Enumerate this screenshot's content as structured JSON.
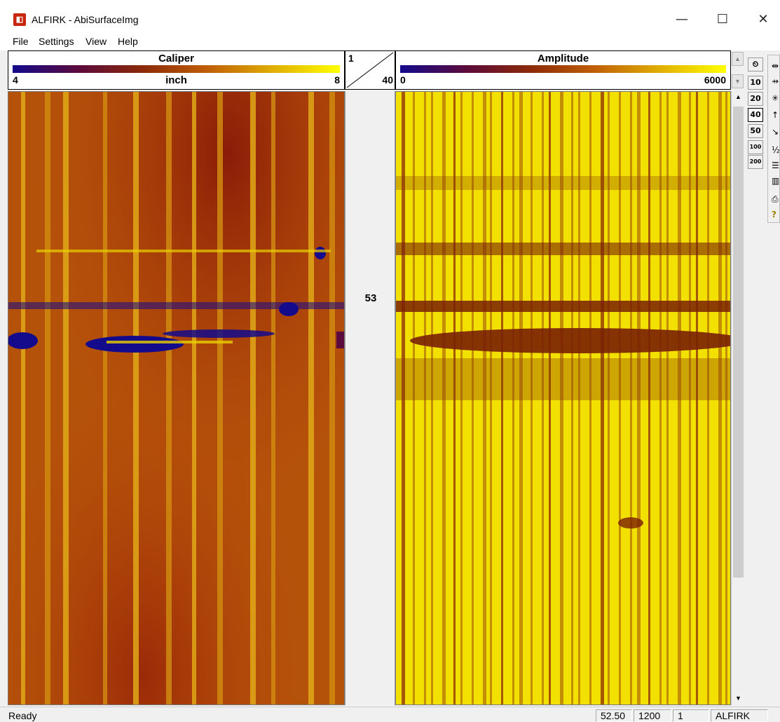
{
  "window": {
    "title": "ALFIRK - AbiSurfaceImg",
    "icon": "app-logo-icon",
    "minimize": "—",
    "maximize": "☐",
    "close": "✕"
  },
  "menu": [
    "File",
    "Settings",
    "View",
    "Help"
  ],
  "caliper": {
    "title": "Caliper",
    "min": "4",
    "max": "8",
    "unit": "inch",
    "colors": [
      "#140a8c",
      "#5a0a3c",
      "#8c2a08",
      "#c06008",
      "#e0b000",
      "#ffff00"
    ]
  },
  "amplitude": {
    "title": "Amplitude",
    "min": "0",
    "max": "6000",
    "colors": [
      "#140a8c",
      "#5a0a3c",
      "#8c2a08",
      "#c06008",
      "#e0b000",
      "#ffff00"
    ]
  },
  "scale": {
    "top": "1",
    "bottom": "40"
  },
  "depth": {
    "label": "53"
  },
  "zoom_buttons": [
    "10",
    "20",
    "40",
    "50",
    "100",
    "200"
  ],
  "zoom_active": "40",
  "toolbar": [
    {
      "icon": "clock-icon",
      "glyph": "⏲"
    },
    {
      "icon": "step-1-icon",
      "glyph": "⇹1"
    },
    {
      "icon": "step-2-icon",
      "glyph": "⇸2"
    },
    {
      "icon": "compass-icon",
      "glyph": "✳"
    },
    {
      "icon": "north-icon",
      "glyph": "↑N"
    },
    {
      "icon": "dip-icon",
      "glyph": "↘"
    },
    {
      "icon": "fraction-icon",
      "glyph": "½"
    },
    {
      "icon": "rows-icon",
      "glyph": "☰"
    },
    {
      "icon": "columns-icon",
      "glyph": "▥"
    },
    {
      "icon": "print-icon",
      "glyph": "⎙"
    },
    {
      "icon": "help-icon",
      "glyph": "?"
    }
  ],
  "status": {
    "ready": "Ready",
    "depth": "52.50",
    "value": "1200",
    "index": "1",
    "name": "ALFIRK"
  }
}
